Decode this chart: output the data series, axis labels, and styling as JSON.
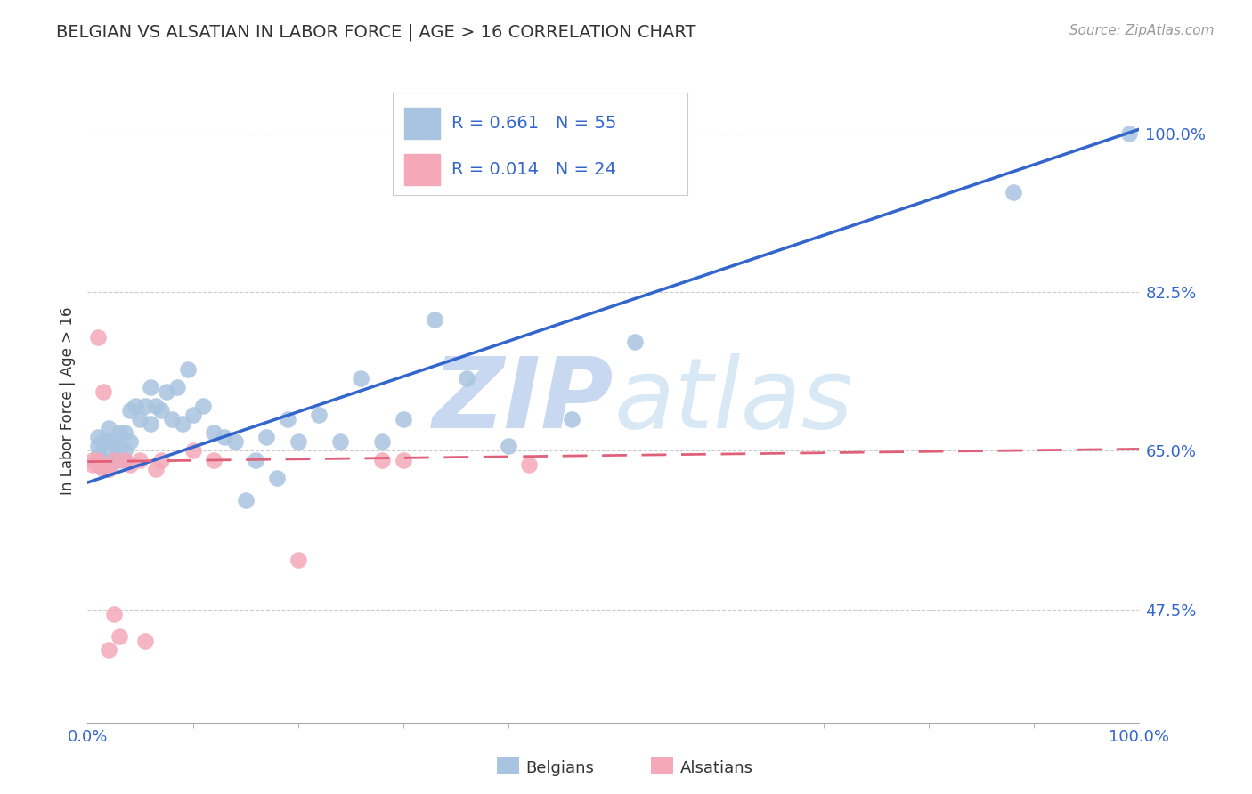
{
  "title": "BELGIAN VS ALSATIAN IN LABOR FORCE | AGE > 16 CORRELATION CHART",
  "source_text": "Source: ZipAtlas.com",
  "ylabel": "In Labor Force | Age > 16",
  "xlim": [
    0.0,
    1.0
  ],
  "ylim": [
    0.35,
    1.06
  ],
  "yticks": [
    0.475,
    0.65,
    0.825,
    1.0
  ],
  "ytick_labels": [
    "47.5%",
    "65.0%",
    "82.5%",
    "100.0%"
  ],
  "xtick_labels": [
    "0.0%",
    "100.0%"
  ],
  "xticks": [
    0.0,
    1.0
  ],
  "belgian_R": 0.661,
  "belgian_N": 55,
  "alsatian_R": 0.014,
  "alsatian_N": 24,
  "belgian_color": "#a8c4e0",
  "alsatian_color": "#f4a8b8",
  "belgian_line_color": "#3366cc",
  "alsatian_line_color": "#e0607a",
  "watermark_color": "#dce8f5",
  "background_color": "#ffffff",
  "grid_color": "#cccccc",
  "belgians_x": [
    0.01,
    0.01,
    0.01,
    0.01,
    0.015,
    0.015,
    0.02,
    0.02,
    0.02,
    0.02,
    0.025,
    0.025,
    0.03,
    0.03,
    0.03,
    0.035,
    0.035,
    0.035,
    0.04,
    0.04,
    0.045,
    0.05,
    0.055,
    0.06,
    0.06,
    0.065,
    0.07,
    0.075,
    0.08,
    0.085,
    0.09,
    0.095,
    0.1,
    0.11,
    0.12,
    0.13,
    0.14,
    0.15,
    0.16,
    0.17,
    0.18,
    0.19,
    0.2,
    0.22,
    0.24,
    0.26,
    0.28,
    0.3,
    0.33,
    0.36,
    0.4,
    0.46,
    0.52,
    0.88,
    0.99
  ],
  "belgians_y": [
    0.635,
    0.645,
    0.655,
    0.665,
    0.64,
    0.66,
    0.63,
    0.645,
    0.66,
    0.675,
    0.64,
    0.66,
    0.64,
    0.65,
    0.67,
    0.64,
    0.65,
    0.67,
    0.66,
    0.695,
    0.7,
    0.685,
    0.7,
    0.68,
    0.72,
    0.7,
    0.695,
    0.715,
    0.685,
    0.72,
    0.68,
    0.74,
    0.69,
    0.7,
    0.67,
    0.665,
    0.66,
    0.595,
    0.64,
    0.665,
    0.62,
    0.685,
    0.66,
    0.69,
    0.66,
    0.73,
    0.66,
    0.685,
    0.795,
    0.73,
    0.655,
    0.685,
    0.77,
    0.935,
    1.0
  ],
  "alsatians_x": [
    0.005,
    0.005,
    0.01,
    0.01,
    0.01,
    0.015,
    0.015,
    0.02,
    0.02,
    0.025,
    0.025,
    0.03,
    0.035,
    0.04,
    0.05,
    0.055,
    0.065,
    0.07,
    0.1,
    0.12,
    0.2,
    0.28,
    0.3,
    0.42
  ],
  "alsatians_y": [
    0.635,
    0.64,
    0.635,
    0.64,
    0.775,
    0.63,
    0.715,
    0.43,
    0.63,
    0.47,
    0.64,
    0.445,
    0.64,
    0.635,
    0.64,
    0.44,
    0.63,
    0.64,
    0.65,
    0.64,
    0.53,
    0.64,
    0.64,
    0.635
  ],
  "belgian_line_x0": 0.0,
  "belgian_line_y0": 0.615,
  "belgian_line_x1": 1.0,
  "belgian_line_y1": 1.005,
  "alsatian_line_x0": 0.0,
  "alsatian_line_y0": 0.638,
  "alsatian_line_x1": 1.0,
  "alsatian_line_y1": 0.652
}
